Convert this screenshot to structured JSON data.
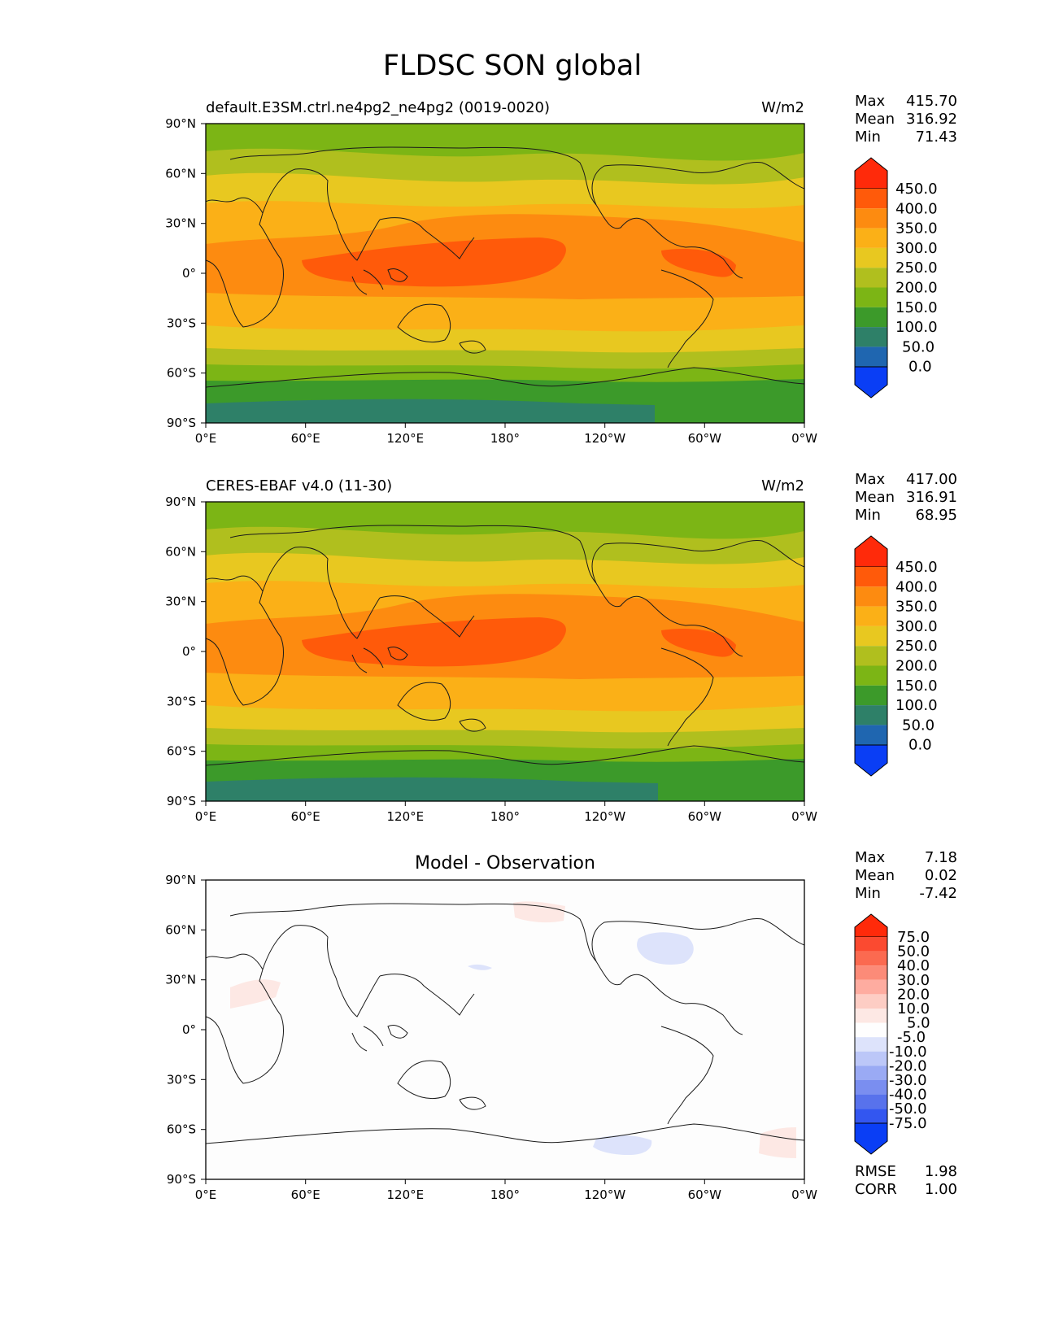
{
  "figure": {
    "title": "FLDSC SON global"
  },
  "axes": {
    "lon_ticks": [
      "0°E",
      "60°E",
      "120°E",
      "180°",
      "120°W",
      "60°W",
      "0°W"
    ],
    "lat_ticks": [
      "90°N",
      "60°N",
      "30°N",
      "0°",
      "30°S",
      "60°S",
      "90°S"
    ]
  },
  "panels": [
    {
      "title_left": "default.E3SM.ctrl.ne4pg2_ne4pg2 (0019-0020)",
      "title_center": "",
      "units": "W/m2",
      "stats": [
        {
          "label": "Max",
          "value": "415.70"
        },
        {
          "label": "Mean",
          "value": "316.92"
        },
        {
          "label": "Min",
          "value": "71.43"
        }
      ],
      "colorbar": {
        "ticks": [
          "450.0",
          "400.0",
          "350.0",
          "300.0",
          "250.0",
          "200.0",
          "150.0",
          "100.0",
          "50.0",
          "0.0"
        ],
        "colors": [
          "#ff2a0a",
          "#ff5a0a",
          "#fd8b10",
          "#fbb017",
          "#e8c820",
          "#b0bf1e",
          "#7cb515",
          "#3c9a2a",
          "#2e8068",
          "#1f66b0",
          "#0a3ef5"
        ]
      }
    },
    {
      "title_left": "CERES-EBAF v4.0 (11-30)",
      "title_center": "",
      "units": "W/m2",
      "stats": [
        {
          "label": "Max",
          "value": "417.00"
        },
        {
          "label": "Mean",
          "value": "316.91"
        },
        {
          "label": "Min",
          "value": "68.95"
        }
      ],
      "colorbar": {
        "ticks": [
          "450.0",
          "400.0",
          "350.0",
          "300.0",
          "250.0",
          "200.0",
          "150.0",
          "100.0",
          "50.0",
          "0.0"
        ],
        "colors": [
          "#ff2a0a",
          "#ff5a0a",
          "#fd8b10",
          "#fbb017",
          "#e8c820",
          "#b0bf1e",
          "#7cb515",
          "#3c9a2a",
          "#2e8068",
          "#1f66b0",
          "#0a3ef5"
        ]
      }
    },
    {
      "title_left": "",
      "title_center": "Model - Observation",
      "units": "",
      "stats": [
        {
          "label": "Max",
          "value": "7.18"
        },
        {
          "label": "Mean",
          "value": "0.02"
        },
        {
          "label": "Min",
          "value": "-7.42"
        }
      ],
      "colorbar": {
        "ticks": [
          "75.0",
          "50.0",
          "40.0",
          "30.0",
          "20.0",
          "10.0",
          "5.0",
          "-5.0",
          "-10.0",
          "-20.0",
          "-30.0",
          "-40.0",
          "-50.0",
          "-75.0"
        ],
        "colors": [
          "#ff2a0a",
          "#fb4a30",
          "#fb6a50",
          "#fc8b78",
          "#feaca0",
          "#fdcdc4",
          "#fde8e4",
          "#fefefe",
          "#dde3fb",
          "#bcc7f8",
          "#9aaaf4",
          "#7a8ef0",
          "#5872ec",
          "#3356f0",
          "#0a3ef5"
        ]
      },
      "extra_stats": [
        {
          "label": "RMSE",
          "value": "1.98"
        },
        {
          "label": "CORR",
          "value": "1.00"
        }
      ]
    }
  ]
}
